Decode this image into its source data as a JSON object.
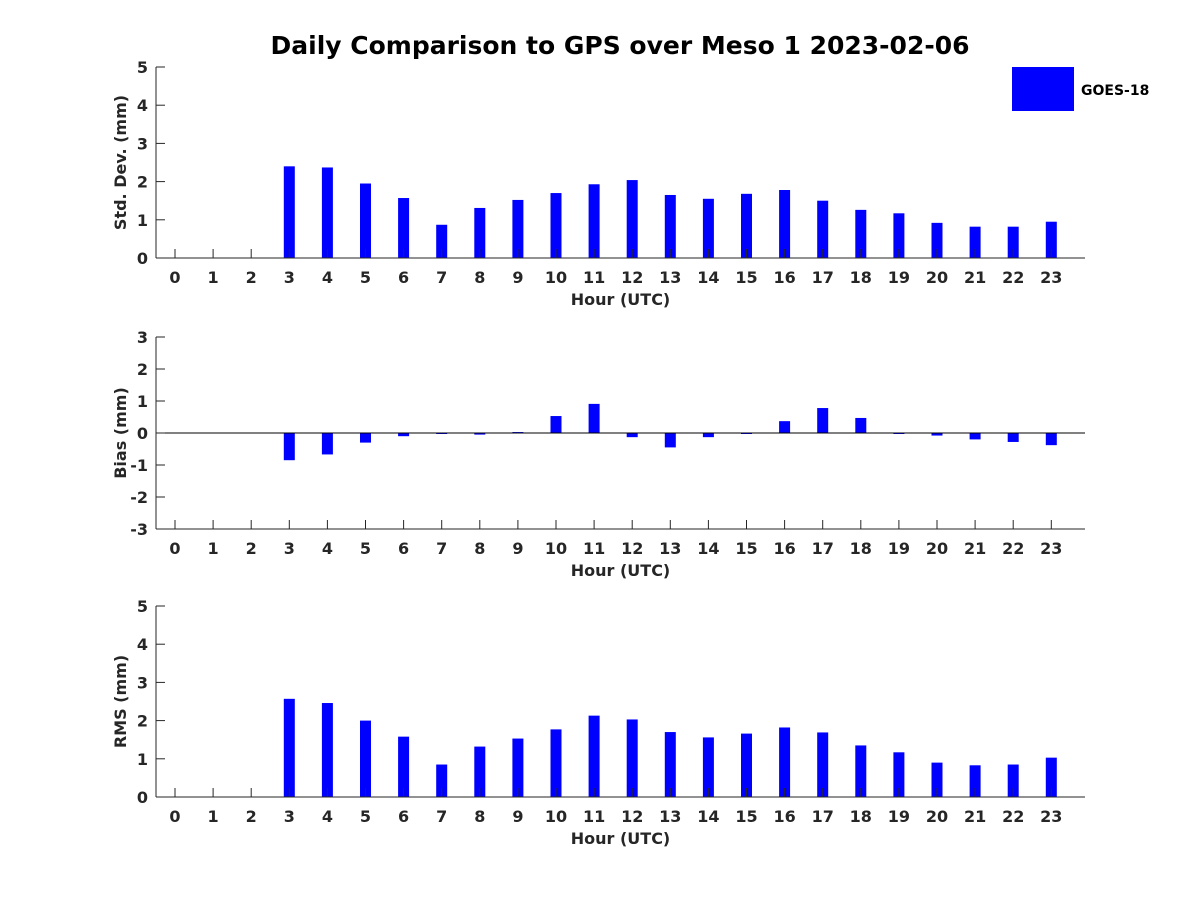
{
  "figure": {
    "title": "Daily Comparison to GPS over Meso 1 2023-02-06",
    "bar_color": "#0000ff",
    "legend": {
      "label": "GOES-18",
      "placement": "top-right"
    }
  },
  "chart_data": [
    {
      "type": "bar",
      "xlabel": "Hour (UTC)",
      "ylabel": "Std. Dev. (mm)",
      "ylim": [
        0,
        5
      ],
      "yticks": [
        0,
        1,
        2,
        3,
        4,
        5
      ],
      "categories": [
        "0",
        "1",
        "2",
        "3",
        "4",
        "5",
        "6",
        "7",
        "8",
        "9",
        "10",
        "11",
        "12",
        "13",
        "14",
        "15",
        "16",
        "17",
        "18",
        "19",
        "20",
        "21",
        "22",
        "23"
      ],
      "series": [
        {
          "name": "GOES-18",
          "values": [
            null,
            null,
            null,
            2.4,
            2.37,
            1.95,
            1.57,
            0.87,
            1.31,
            1.52,
            1.7,
            1.93,
            2.04,
            1.65,
            1.55,
            1.68,
            1.78,
            1.5,
            1.26,
            1.17,
            0.92,
            0.82,
            0.82,
            0.95
          ]
        }
      ]
    },
    {
      "type": "bar",
      "xlabel": "Hour (UTC)",
      "ylabel": "Bias (mm)",
      "ylim": [
        -3,
        3
      ],
      "yticks": [
        -3,
        -2,
        -1,
        0,
        1,
        2,
        3
      ],
      "categories": [
        "0",
        "1",
        "2",
        "3",
        "4",
        "5",
        "6",
        "7",
        "8",
        "9",
        "10",
        "11",
        "12",
        "13",
        "14",
        "15",
        "16",
        "17",
        "18",
        "19",
        "20",
        "21",
        "22",
        "23"
      ],
      "series": [
        {
          "name": "GOES-18",
          "values": [
            null,
            null,
            null,
            -0.85,
            -0.67,
            -0.3,
            -0.1,
            0.0,
            -0.05,
            0.03,
            0.53,
            0.91,
            -0.13,
            -0.45,
            -0.13,
            0.0,
            0.37,
            0.78,
            0.47,
            -0.02,
            -0.08,
            -0.2,
            -0.28,
            -0.38
          ]
        }
      ]
    },
    {
      "type": "bar",
      "xlabel": "Hour (UTC)",
      "ylabel": "RMS (mm)",
      "ylim": [
        0,
        5
      ],
      "yticks": [
        0,
        1,
        2,
        3,
        4,
        5
      ],
      "categories": [
        "0",
        "1",
        "2",
        "3",
        "4",
        "5",
        "6",
        "7",
        "8",
        "9",
        "10",
        "11",
        "12",
        "13",
        "14",
        "15",
        "16",
        "17",
        "18",
        "19",
        "20",
        "21",
        "22",
        "23"
      ],
      "series": [
        {
          "name": "GOES-18",
          "values": [
            null,
            null,
            null,
            2.57,
            2.46,
            2.0,
            1.58,
            0.85,
            1.32,
            1.53,
            1.77,
            2.13,
            2.03,
            1.7,
            1.56,
            1.66,
            1.82,
            1.69,
            1.35,
            1.17,
            0.9,
            0.83,
            0.85,
            1.03
          ]
        }
      ]
    }
  ]
}
